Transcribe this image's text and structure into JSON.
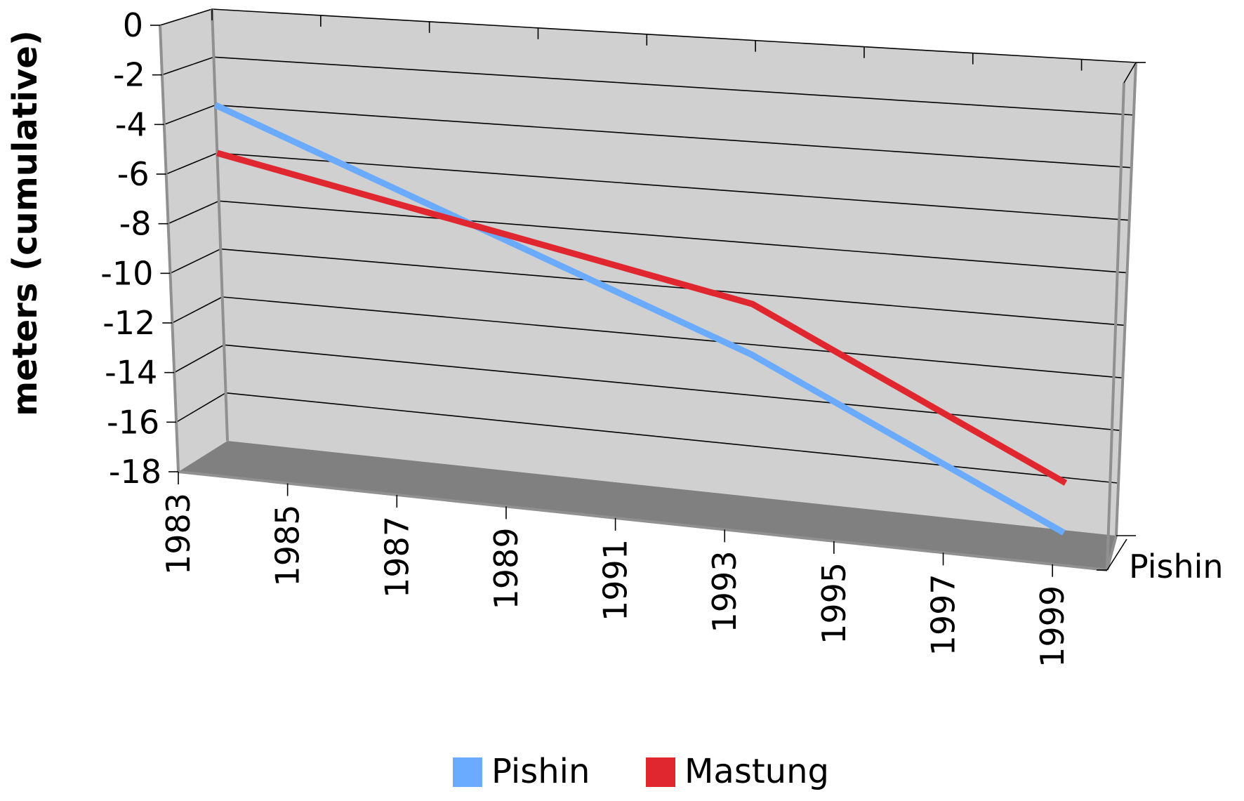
{
  "chart_data": {
    "type": "line",
    "style": "3d",
    "title": "",
    "xlabel": "",
    "ylabel": "meters (cumulative)",
    "ylim": [
      -18,
      0
    ],
    "yticks": [
      "0",
      "-2",
      "-4",
      "-6",
      "-8",
      "-10",
      "-12",
      "-14",
      "-16",
      "-18"
    ],
    "categories": [
      "1983",
      "1985",
      "1987",
      "1989",
      "1991",
      "1993",
      "1995",
      "1997",
      "1999"
    ],
    "depth_label": "Pishin",
    "grid": true,
    "legend_position": "bottom",
    "series": [
      {
        "name": "Pishin",
        "color": "#6aaaff",
        "x": [
          1983,
          1993,
          1999
        ],
        "y": [
          -4,
          -12.4,
          -18.1
        ]
      },
      {
        "name": "Mastung",
        "color": "#e0272f",
        "x": [
          1983,
          1993,
          1999
        ],
        "y": [
          -6,
          -10.4,
          -16.2
        ]
      }
    ],
    "colors": {
      "wall": "#d0d0d0",
      "floor": "#808080",
      "axis": "#909090",
      "gridline": "#000000"
    }
  }
}
